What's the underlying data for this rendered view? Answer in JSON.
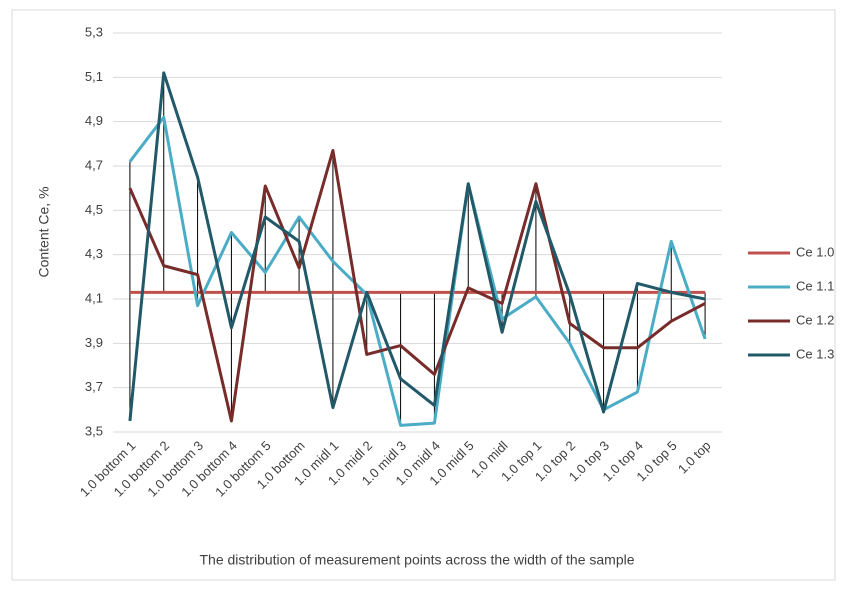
{
  "chart_data": {
    "type": "line",
    "ylabel": "Content Ce, %",
    "xlabel": "The distribution of  measurement points across the width of the sample",
    "categories": [
      "1.0 bottom 1",
      "1.0 bottom 2",
      "1.0 bottom 3",
      "1.0 bottom 4",
      "1.0 bottom 5",
      "1.0 bottom",
      "1.0 midl 1",
      "1.0 midl 2",
      "1.0 midl 3",
      "1.0 midl 4",
      "1.0 midl 5",
      "1.0 midl",
      "1.0 top 1",
      "1.0 top 2",
      "1.0 top 3",
      "1.0 top 4",
      "1.0 top 5",
      "1.0 top"
    ],
    "series": [
      {
        "name": "Ce 1.0",
        "color": "#c0504d",
        "values": [
          4.13,
          4.13,
          4.13,
          4.13,
          4.13,
          4.13,
          4.13,
          4.13,
          4.13,
          4.13,
          4.13,
          4.13,
          4.13,
          4.13,
          4.13,
          4.13,
          4.13,
          4.13
        ]
      },
      {
        "name": "Ce 1.1",
        "color": "#4bacc6",
        "values": [
          4.72,
          4.92,
          4.07,
          4.4,
          4.22,
          4.47,
          4.27,
          4.12,
          3.53,
          3.54,
          4.62,
          4.01,
          4.11,
          3.9,
          3.6,
          3.68,
          4.36,
          3.92
        ]
      },
      {
        "name": "Ce 1.2",
        "color": "#772c2a",
        "values": [
          4.6,
          4.25,
          4.21,
          3.55,
          4.61,
          4.24,
          4.77,
          3.85,
          3.89,
          3.76,
          4.15,
          4.08,
          4.62,
          3.99,
          3.88,
          3.88,
          4.0,
          4.08
        ]
      },
      {
        "name": "Ce 1.3",
        "color": "#215968",
        "values": [
          3.55,
          5.12,
          4.65,
          3.97,
          4.47,
          4.36,
          3.61,
          4.13,
          3.74,
          3.62,
          4.62,
          3.95,
          4.54,
          4.12,
          3.59,
          4.17,
          4.13,
          4.1
        ]
      }
    ],
    "ylim": [
      3.5,
      5.3
    ],
    "yticks": [
      {
        "value": 3.5,
        "label": "3,5"
      },
      {
        "value": 3.7,
        "label": "3,7"
      },
      {
        "value": 3.9,
        "label": "3,9"
      },
      {
        "value": 4.1,
        "label": "4,1"
      },
      {
        "value": 4.3,
        "label": "4,3"
      },
      {
        "value": 4.5,
        "label": "4,5"
      },
      {
        "value": 4.7,
        "label": "4,7"
      },
      {
        "value": 4.9,
        "label": "4,9"
      },
      {
        "value": 5.1,
        "label": "5,1"
      },
      {
        "value": 5.3,
        "label": "5,3"
      }
    ],
    "grid": true,
    "high_low_lines": true,
    "legend": "right"
  }
}
